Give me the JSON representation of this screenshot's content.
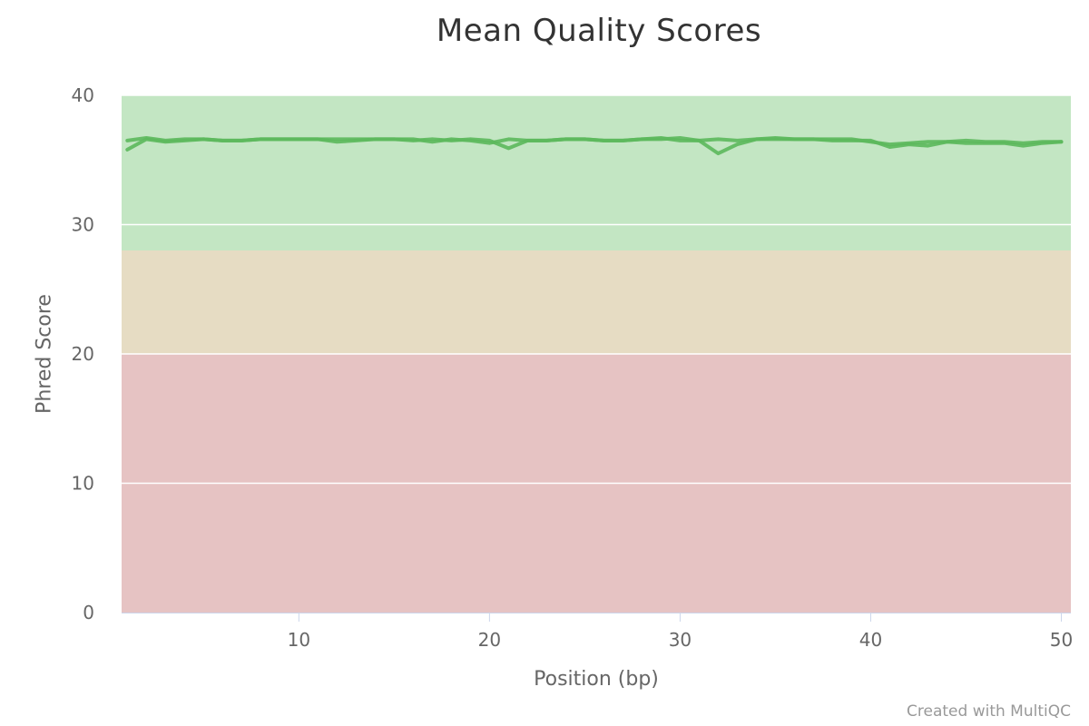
{
  "chart_data": {
    "type": "line",
    "title": "Mean Quality Scores",
    "xlabel": "Position (bp)",
    "ylabel": "Phred Score",
    "xlim": [
      0.7,
      50.5
    ],
    "ylim": [
      0,
      40
    ],
    "x_ticks": [
      10,
      20,
      30,
      40,
      50
    ],
    "y_ticks": [
      0,
      10,
      20,
      30,
      40
    ],
    "grid": true,
    "legend": "none",
    "bands": [
      {
        "from": 28,
        "to": 40,
        "color": "#c3e6c3"
      },
      {
        "from": 20,
        "to": 28,
        "color": "#e6dcc3"
      },
      {
        "from": 0,
        "to": 20,
        "color": "#e6c3c3"
      }
    ],
    "line_color": "#5cb85c",
    "x": [
      1,
      2,
      3,
      4,
      5,
      6,
      7,
      8,
      9,
      10,
      11,
      12,
      13,
      14,
      15,
      16,
      17,
      18,
      19,
      20,
      21,
      22,
      23,
      24,
      25,
      26,
      27,
      28,
      29,
      30,
      31,
      32,
      33,
      34,
      35,
      36,
      37,
      38,
      39,
      40,
      41,
      42,
      43,
      44,
      45,
      46,
      47,
      48,
      49,
      50
    ],
    "series": [
      {
        "values": [
          35.8,
          36.6,
          36.4,
          36.5,
          36.6,
          36.5,
          36.5,
          36.6,
          36.6,
          36.6,
          36.6,
          36.4,
          36.5,
          36.6,
          36.6,
          36.5,
          36.6,
          36.5,
          36.6,
          36.5,
          35.9,
          36.5,
          36.5,
          36.6,
          36.6,
          36.5,
          36.5,
          36.6,
          36.7,
          36.5,
          36.5,
          35.5,
          36.2,
          36.6,
          36.6,
          36.6,
          36.6,
          36.5,
          36.5,
          36.5,
          36.0,
          36.2,
          36.1,
          36.4,
          36.3,
          36.3,
          36.3,
          36.1,
          36.3,
          36.4
        ]
      },
      {
        "values": [
          36.5,
          36.7,
          36.5,
          36.6,
          36.6,
          36.5,
          36.5,
          36.6,
          36.6,
          36.6,
          36.6,
          36.6,
          36.6,
          36.6,
          36.6,
          36.6,
          36.4,
          36.6,
          36.5,
          36.3,
          36.6,
          36.5,
          36.5,
          36.6,
          36.6,
          36.5,
          36.5,
          36.6,
          36.6,
          36.7,
          36.5,
          36.6,
          36.5,
          36.6,
          36.7,
          36.6,
          36.6,
          36.6,
          36.6,
          36.4,
          36.2,
          36.3,
          36.4,
          36.4,
          36.5,
          36.4,
          36.4,
          36.3,
          36.4,
          36.4
        ]
      }
    ]
  },
  "credit": "Created with MultiQC"
}
